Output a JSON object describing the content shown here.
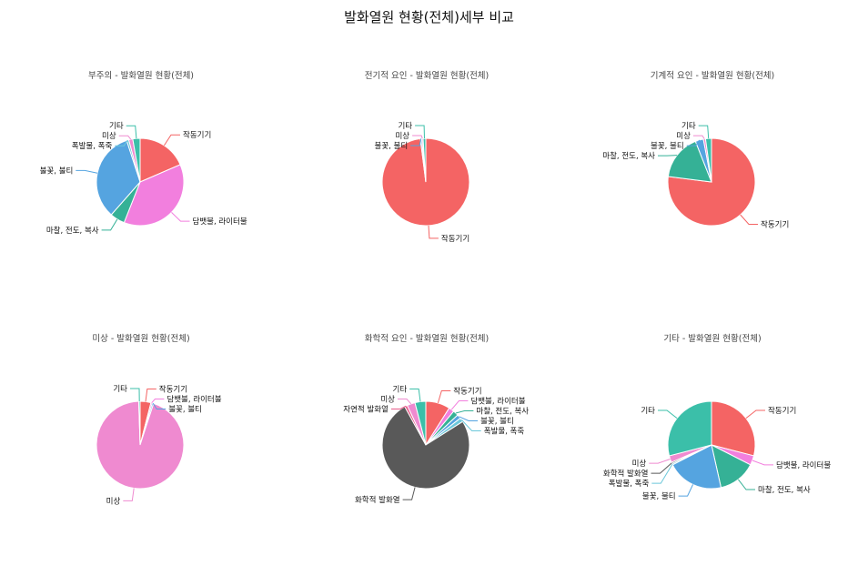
{
  "title": "발화열원 현황(전체)세부 비교",
  "colors": {
    "작동기기": "#f46464",
    "담뱃불, 라이터불": "#f27fde",
    "마찰, 전도, 복사": "#35b196",
    "불꽃, 불티": "#55a4e0",
    "폭발물, 폭죽": "#6cc8da",
    "미상": "#ef8ad0",
    "기타": "#3bbfa9",
    "화학적 발화열": "#595959",
    "자연적 발화열": "#e65b88"
  },
  "chart_data": [
    {
      "type": "pie",
      "title": "부주의 - 발화열원 현황(전체)",
      "categories": [
        "작동기기",
        "담뱃불, 라이터불",
        "마찰, 전도, 복사",
        "불꽃, 불티",
        "폭발물, 폭죽",
        "미상",
        "기타"
      ],
      "values": [
        18.5,
        37.5,
        5.5,
        33.5,
        0.8,
        1.5,
        2.7
      ]
    },
    {
      "type": "pie",
      "title": "전기적 요인 - 발화열원 현황(전체)",
      "categories": [
        "작동기기",
        "불꽃, 불티",
        "미상",
        "기타"
      ],
      "values": [
        98,
        0.5,
        0.5,
        1.0
      ]
    },
    {
      "type": "pie",
      "title": "기계적 요인 - 발화열원 현황(전체)",
      "categories": [
        "작동기기",
        "마찰, 전도, 복사",
        "불꽃, 불티",
        "미상",
        "기타"
      ],
      "values": [
        77,
        17,
        3,
        0.8,
        2.2
      ]
    },
    {
      "type": "pie",
      "title": "미상 - 발화열원 현황(전체)",
      "categories": [
        "작동기기",
        "담뱃불, 라이터불",
        "불꽃, 불티",
        "미상",
        "기타"
      ],
      "values": [
        4,
        0.5,
        0.5,
        94.5,
        0.5
      ]
    },
    {
      "type": "pie",
      "title": "화학적 요인 - 발화열원 현황(전체)",
      "categories": [
        "작동기기",
        "담뱃불, 라이터불",
        "마찰, 전도, 복사",
        "불꽃, 불티",
        "폭발물, 폭죽",
        "화학적 발화열",
        "자연적 발화열",
        "미상",
        "기타"
      ],
      "values": [
        9,
        2,
        2,
        1.5,
        1.5,
        76,
        1,
        3,
        4
      ]
    },
    {
      "type": "pie",
      "title": "기타 - 발화열원 현황(전체)",
      "categories": [
        "작동기기",
        "담뱃불, 라이터불",
        "마찰, 전도, 복사",
        "불꽃, 불티",
        "폭발물, 폭죽",
        "화학적 발화열",
        "미상",
        "기타"
      ],
      "values": [
        29,
        3.5,
        14,
        21,
        0.5,
        0.5,
        2.5,
        29
      ]
    }
  ]
}
